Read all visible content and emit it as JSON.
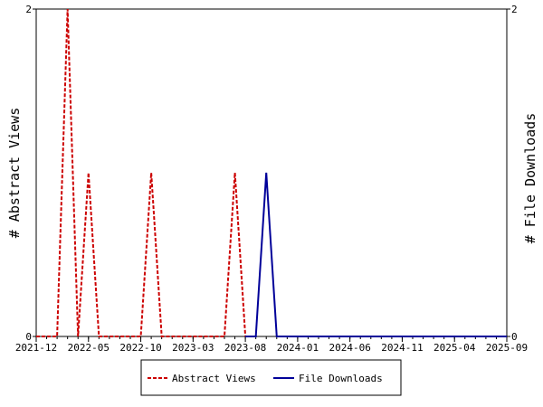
{
  "chart_data": {
    "type": "line",
    "x_ticks": [
      "2021-12",
      "2022-05",
      "2022-10",
      "2023-03",
      "2023-08",
      "2024-01",
      "2024-06",
      "2024-11",
      "2025-04",
      "2025-09"
    ],
    "x_range": [
      "2021-12",
      "2025-09"
    ],
    "y_left": {
      "label": "# Abstract Views",
      "range": [
        0,
        2
      ],
      "ticks": [
        "0",
        "2"
      ]
    },
    "y_right": {
      "label": "# File Downloads",
      "range": [
        0,
        2
      ],
      "ticks": [
        "0",
        "2"
      ]
    },
    "grid": false,
    "legend_position": "bottom-center",
    "series": [
      {
        "name": "Abstract Views",
        "color": "#cc0000",
        "style": "dashed",
        "axis": "left",
        "points": [
          [
            "2021-12",
            0
          ],
          [
            "2022-02",
            0
          ],
          [
            "2022-03",
            2
          ],
          [
            "2022-04",
            0
          ],
          [
            "2022-05",
            1
          ],
          [
            "2022-06",
            0
          ],
          [
            "2022-10",
            0
          ],
          [
            "2022-11",
            1
          ],
          [
            "2022-12",
            0
          ],
          [
            "2023-06",
            0
          ],
          [
            "2023-07",
            1
          ],
          [
            "2023-08",
            0
          ]
        ]
      },
      {
        "name": "File Downloads",
        "color": "#000099",
        "style": "solid",
        "axis": "right",
        "points": [
          [
            "2023-08",
            0
          ],
          [
            "2023-09",
            0
          ],
          [
            "2023-10",
            1
          ],
          [
            "2023-11",
            0
          ],
          [
            "2025-09",
            0
          ]
        ]
      }
    ]
  }
}
